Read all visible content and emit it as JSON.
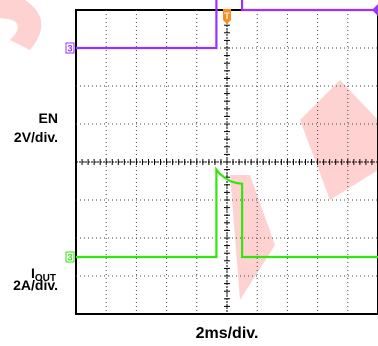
{
  "chart_data": {
    "type": "line",
    "time_per_div_label": "2ms/div.",
    "time_per_div_ms": 2,
    "x_range_ms": [
      -10,
      10
    ],
    "x_grid_divs": 10,
    "y_grid_divs": 8,
    "grid": true,
    "trigger_marker": "T",
    "series": [
      {
        "name": "EN",
        "scale_label": "2V/div.",
        "channel_marker": "3",
        "color": "#9b30ff",
        "units": "V",
        "volts_per_div": 2,
        "baseline_div": 3,
        "points": [
          [
            -10,
            0
          ],
          [
            -0.7,
            0
          ],
          [
            -0.7,
            5.6
          ],
          [
            1.0,
            5.6
          ],
          [
            1.0,
            2.0
          ],
          [
            10,
            2.0
          ]
        ]
      },
      {
        "name": "IOUT",
        "name_main": "I",
        "name_sub": "OUT",
        "scale_label": "2A/div.",
        "channel_marker": "3",
        "color": "#33e60f",
        "units": "A",
        "amps_per_div": 2,
        "baseline_div": -2.5,
        "points": [
          [
            -10,
            0
          ],
          [
            -0.7,
            0
          ],
          [
            -0.7,
            4.6
          ],
          [
            -0.5,
            4.4
          ],
          [
            -0.2,
            4.2
          ],
          [
            0.2,
            4.0
          ],
          [
            0.6,
            3.9
          ],
          [
            1.0,
            3.85
          ],
          [
            1.0,
            0
          ],
          [
            10,
            0
          ]
        ]
      }
    ]
  }
}
